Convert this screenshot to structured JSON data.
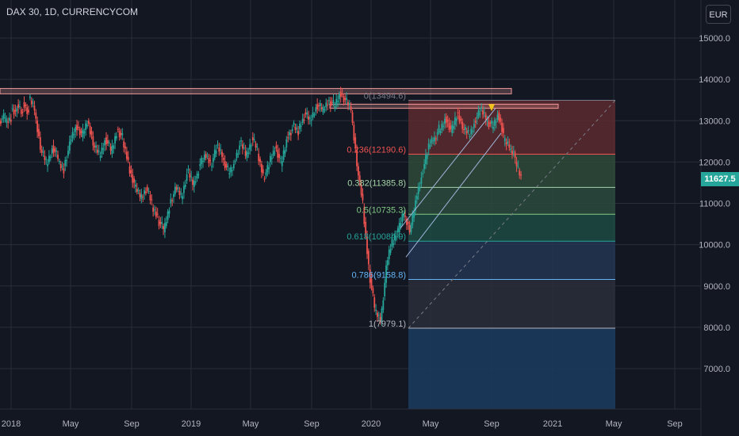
{
  "header": {
    "title": "DAX 30, 1D, CURRENCYCOM",
    "currency": "EUR"
  },
  "last_price": "11627.5",
  "colors": {
    "background": "#131722",
    "grid": "#2a2e39",
    "up": "#26a69a",
    "down": "#ef5350",
    "axis_text": "#b2b5be"
  },
  "chart_data": {
    "type": "candlestick",
    "y_ticks": [
      "7000.0",
      "8000.0",
      "9000.0",
      "10000.0",
      "11000.0",
      "12000.0",
      "13000.0",
      "14000.0",
      "15000.0"
    ],
    "ylim": [
      6000,
      15600
    ],
    "x_ticks": [
      "2018",
      "May",
      "Sep",
      "2019",
      "May",
      "Sep",
      "2020",
      "May",
      "Sep",
      "2021",
      "May",
      "Sep"
    ],
    "fib_levels": [
      {
        "label": "0(13494.6)",
        "ratio": "0",
        "value": 13494.6,
        "color": "#787b86"
      },
      {
        "label": "0.236(12190.6)",
        "ratio": "0.236",
        "value": 12190.6,
        "color": "#ef5350"
      },
      {
        "label": "0.382(11385.8)",
        "ratio": "0.382",
        "value": 11385.8,
        "color": "#a5d6a7"
      },
      {
        "label": "0.5(10735.3)",
        "ratio": "0.5",
        "value": 10735.3,
        "color": "#81c784"
      },
      {
        "label": "0.618(10084.9)",
        "ratio": "0.618",
        "value": 10084.9,
        "color": "#26a69a"
      },
      {
        "label": "0.786(9158.8)",
        "ratio": "0.786",
        "value": 9158.8,
        "color": "#64b5f6"
      },
      {
        "label": "1(7979.1)",
        "ratio": "1",
        "value": 7979.1,
        "color": "#b2b5be"
      }
    ],
    "resistance_zones": [
      {
        "from": 13650,
        "to": 13780
      },
      {
        "from": 13300,
        "to": 13400
      }
    ],
    "price_path": [
      [
        13000,
        13100
      ],
      [
        12950,
        13050
      ],
      [
        13300,
        13200
      ],
      [
        13400,
        13150
      ],
      [
        13450,
        13200
      ],
      [
        13550,
        13300
      ],
      [
        13200,
        12400
      ],
      [
        12300,
        12000
      ],
      [
        11900,
        12300
      ],
      [
        12400,
        12100
      ],
      [
        12000,
        11800
      ],
      [
        11900,
        12400
      ],
      [
        12500,
        12800
      ],
      [
        12900,
        12700
      ],
      [
        12600,
        12950
      ],
      [
        13000,
        12500
      ],
      [
        12400,
        12200
      ],
      [
        12100,
        12500
      ],
      [
        12600,
        12300
      ],
      [
        12200,
        12700
      ],
      [
        12800,
        12600
      ],
      [
        12500,
        12000
      ],
      [
        11900,
        11500
      ],
      [
        11400,
        11200
      ],
      [
        11100,
        11350
      ],
      [
        11400,
        11000
      ],
      [
        10900,
        10700
      ],
      [
        10600,
        10400
      ],
      [
        10300,
        10900
      ],
      [
        11000,
        11300
      ],
      [
        11400,
        11200
      ],
      [
        11100,
        11700
      ],
      [
        11800,
        11500
      ],
      [
        11400,
        11800
      ],
      [
        11900,
        12100
      ],
      [
        12200,
        12000
      ],
      [
        11900,
        12300
      ],
      [
        12400,
        12200
      ],
      [
        12100,
        11800
      ],
      [
        11700,
        11900
      ],
      [
        12000,
        12400
      ],
      [
        12500,
        12200
      ],
      [
        12100,
        12500
      ],
      [
        12600,
        12300
      ],
      [
        12200,
        11700
      ],
      [
        11600,
        11900
      ],
      [
        12000,
        12300
      ],
      [
        12400,
        12000
      ],
      [
        11900,
        12500
      ],
      [
        12600,
        12800
      ],
      [
        12900,
        12700
      ],
      [
        12800,
        13100
      ],
      [
        13200,
        13000
      ],
      [
        13000,
        13300
      ],
      [
        13400,
        13300
      ],
      [
        13200,
        13450
      ],
      [
        13500,
        13400
      ],
      [
        13300,
        13600
      ],
      [
        13700,
        13500
      ],
      [
        13500,
        13300
      ],
      [
        13200,
        12000
      ],
      [
        11900,
        11000
      ],
      [
        10900,
        9500
      ],
      [
        9400,
        8500
      ],
      [
        8400,
        8200
      ],
      [
        8100,
        9400
      ],
      [
        9500,
        10100
      ],
      [
        10000,
        10400
      ],
      [
        10300,
        10800
      ],
      [
        10700,
        10400
      ],
      [
        10300,
        11000
      ],
      [
        11100,
        11600
      ],
      [
        11700,
        12200
      ],
      [
        12300,
        12600
      ],
      [
        12500,
        12800
      ],
      [
        12700,
        13000
      ],
      [
        13100,
        12800
      ],
      [
        12700,
        13100
      ],
      [
        13200,
        12900
      ],
      [
        12800,
        12700
      ],
      [
        12600,
        12900
      ],
      [
        13000,
        13200
      ],
      [
        13300,
        13100
      ],
      [
        13000,
        12900
      ],
      [
        12800,
        13100
      ],
      [
        13200,
        12700
      ],
      [
        12500,
        12400
      ],
      [
        12300,
        12200
      ],
      [
        12000,
        11600
      ]
    ]
  }
}
